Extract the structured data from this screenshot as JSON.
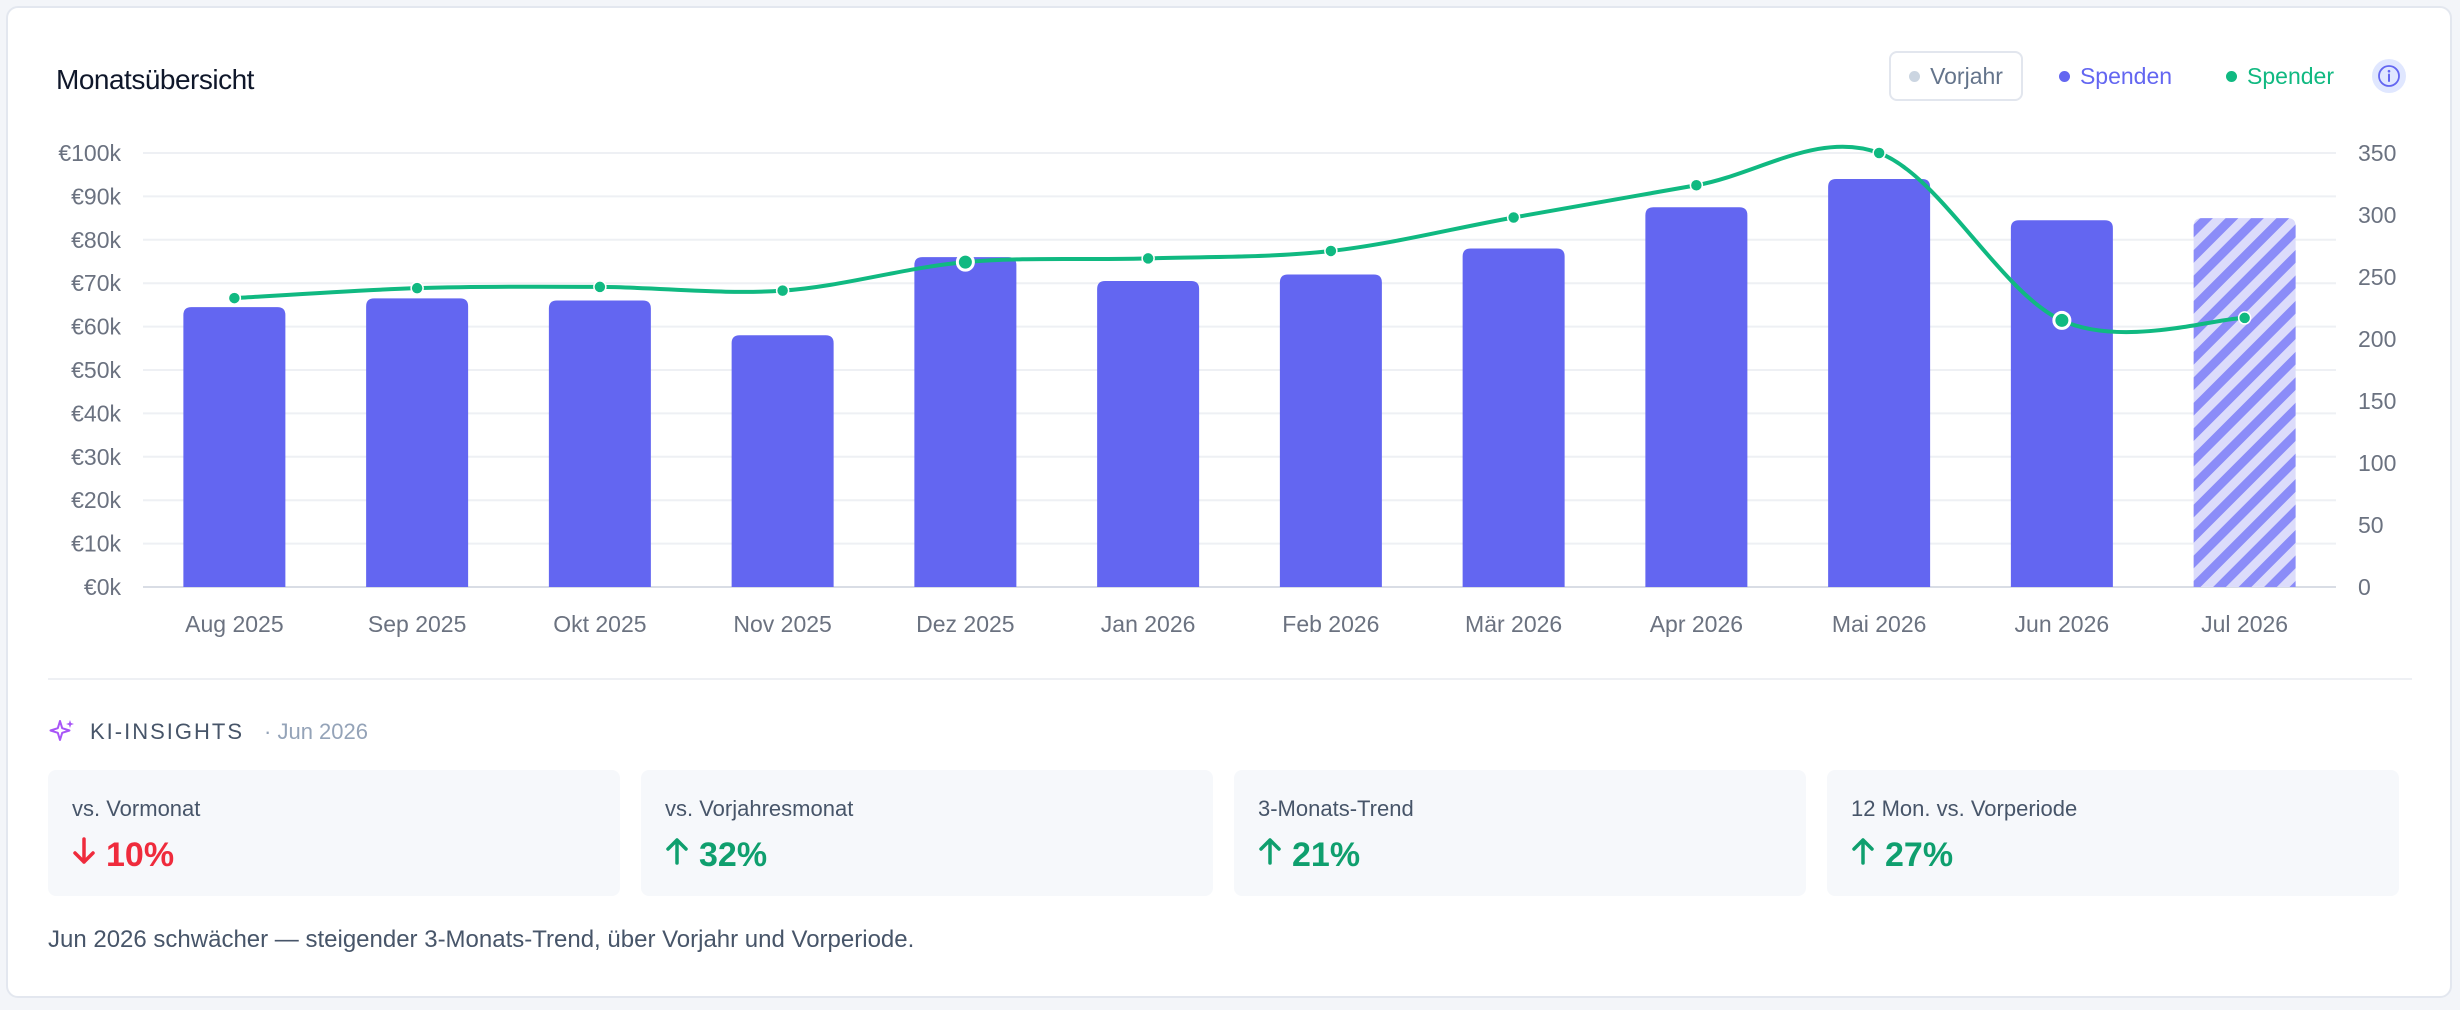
{
  "header": {
    "title": "Monatsübersicht"
  },
  "legend": {
    "prev_year": "Vorjahr",
    "donations": "Spenden",
    "donors": "Spender",
    "info_icon": "info-icon",
    "colors": {
      "donations": "#6366f1",
      "donors": "#10b981",
      "prev_year": "#cbd5e1"
    }
  },
  "chart_data": {
    "type": "bar",
    "categories": [
      "Aug 2025",
      "Sep 2025",
      "Okt 2025",
      "Nov 2025",
      "Dez 2025",
      "Jan 2026",
      "Feb 2026",
      "Mär 2026",
      "Apr 2026",
      "Mai 2026",
      "Jun 2026",
      "Jul 2026"
    ],
    "series": [
      {
        "name": "Spenden",
        "type": "bar",
        "axis": "left",
        "values": [
          64500,
          66500,
          66000,
          58000,
          76000,
          70500,
          72000,
          78000,
          87500,
          94000,
          84500,
          85000
        ],
        "color": "#6366f1",
        "partial_last": true
      },
      {
        "name": "Spender",
        "type": "line",
        "axis": "right",
        "values": [
          233,
          241,
          242,
          239,
          262,
          265,
          271,
          298,
          324,
          350,
          215,
          217
        ],
        "color": "#10b981"
      }
    ],
    "y_left": {
      "ylim": [
        0,
        100000
      ],
      "ticks": [
        "€0k",
        "€10k",
        "€20k",
        "€30k",
        "€40k",
        "€50k",
        "€60k",
        "€70k",
        "€80k",
        "€90k",
        "€100k"
      ]
    },
    "y_right": {
      "ylim": [
        0,
        350
      ],
      "ticks": [
        "0",
        "50",
        "100",
        "150",
        "200",
        "250",
        "300",
        "350"
      ]
    },
    "grid": true
  },
  "insights": {
    "label": "KI-INSIGHTS",
    "period": "· Jun 2026",
    "icon": "sparkle-icon",
    "tiles": [
      {
        "label": "vs. Vormonat",
        "direction": "down",
        "value": "10%"
      },
      {
        "label": "vs. Vorjahresmonat",
        "direction": "up",
        "value": "32%"
      },
      {
        "label": "3-Monats-Trend",
        "direction": "up",
        "value": "21%"
      },
      {
        "label": "12 Mon. vs. Vorperiode",
        "direction": "up",
        "value": "27%"
      }
    ],
    "summary": "Jun 2026 schwächer — steigender 3-Monats-Trend, über Vorjahr und Vorperiode."
  }
}
